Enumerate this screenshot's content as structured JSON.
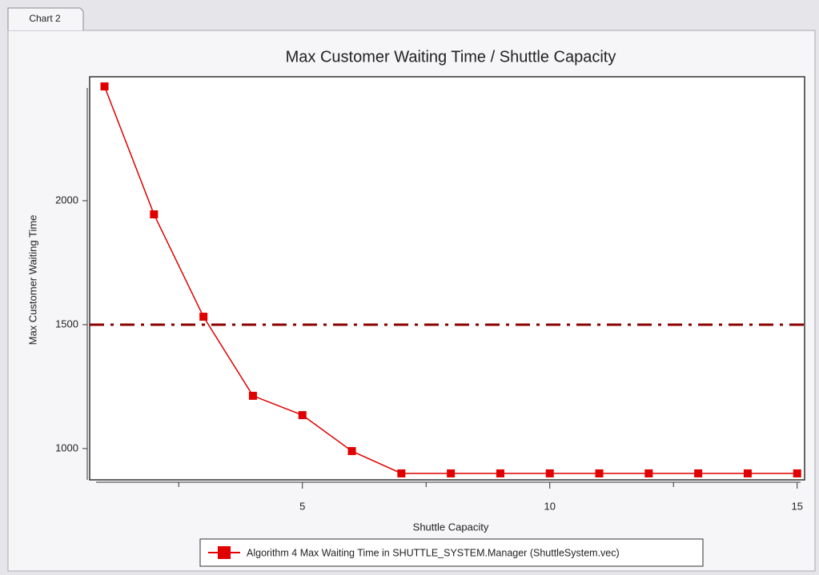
{
  "tab": "Chart 2",
  "chart_data": {
    "type": "line",
    "title": "Max Customer Waiting Time / Shuttle Capacity",
    "xlabel": "Shuttle Capacity",
    "ylabel": "Max Customer Waiting Time",
    "x": [
      1,
      2,
      3,
      4,
      5,
      6,
      7,
      8,
      9,
      10,
      11,
      12,
      13,
      14,
      15
    ],
    "series": [
      {
        "name": "Algorithm 4 Max Waiting Time in SHUTTLE_SYSTEM.Manager (ShuttleSystem.vec)",
        "color": "#e00000",
        "values": [
          2461,
          1945,
          1532,
          1213,
          1135,
          990,
          900,
          900,
          900,
          900,
          900,
          900,
          900,
          900,
          900
        ]
      }
    ],
    "xlim": [
      0.7,
      15.15
    ],
    "ylim": [
      874,
      2500
    ],
    "xticks": [
      5,
      10,
      15
    ],
    "xminor_ticks": [
      2.5,
      7.5,
      12.5
    ],
    "yticks": [
      1000,
      1500,
      2000
    ],
    "reference_line": 1500,
    "reference_color": "#8b0000"
  }
}
